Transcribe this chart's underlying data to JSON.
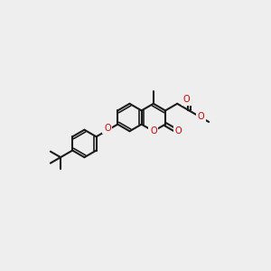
{
  "bg_color": "#eeeeee",
  "bond_color": "#1a1a1a",
  "oxygen_color": "#cc0000",
  "bond_lw": 1.5,
  "font_size": 7.0,
  "fig_width": 3.0,
  "fig_height": 3.0,
  "dpi": 100,
  "xlim": [
    -1.6,
    1.85
  ],
  "ylim": [
    -1.15,
    0.85
  ]
}
